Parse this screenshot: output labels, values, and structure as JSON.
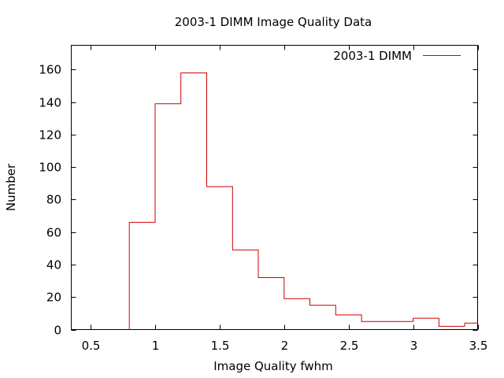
{
  "chart_data": {
    "type": "bar",
    "title": "2003-1 DIMM Image Quality Data",
    "xlabel": "Image Quality fwhm",
    "ylabel": "Number",
    "xlim": [
      0.35,
      3.5
    ],
    "ylim": [
      0,
      175
    ],
    "xticks": [
      0.5,
      1,
      1.5,
      2,
      2.5,
      3,
      3.5
    ],
    "xtick_labels": [
      "0.5",
      "1",
      "1.5",
      "2",
      "2.5",
      "3",
      "3.5"
    ],
    "yticks": [
      0,
      20,
      40,
      60,
      80,
      100,
      120,
      140,
      160
    ],
    "ytick_labels": [
      "0",
      "20",
      "40",
      "60",
      "80",
      "100",
      "120",
      "140",
      "160"
    ],
    "legend_position": "top-right",
    "grid": false,
    "bin_width": 0.2,
    "series": [
      {
        "name": "2003-1 DIMM",
        "color": "#cc0000",
        "style": "steps",
        "bin_starts": [
          0.8,
          1.0,
          1.2,
          1.4,
          1.6,
          1.8,
          2.0,
          2.2,
          2.4,
          2.6,
          2.8,
          3.0,
          3.2,
          3.4
        ],
        "values": [
          66,
          139,
          158,
          88,
          49,
          32,
          19,
          15,
          9,
          5,
          5,
          7,
          2,
          4
        ]
      }
    ]
  }
}
